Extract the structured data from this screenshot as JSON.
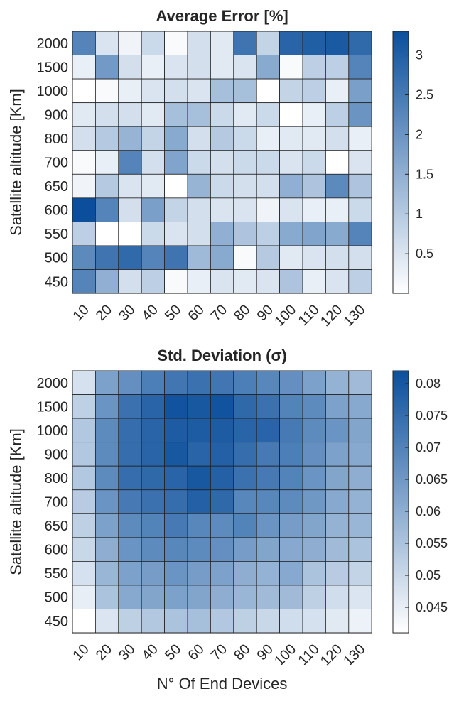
{
  "figure": {
    "xlabel": "N° Of End Devices"
  },
  "chart_data": [
    {
      "type": "heatmap",
      "title": "Average Error [%]",
      "ylabel": "Satellite altitude [Km]",
      "xlabel": "",
      "x_categories": [
        "10",
        "20",
        "30",
        "40",
        "50",
        "60",
        "70",
        "80",
        "90",
        "100",
        "110",
        "120",
        "130"
      ],
      "y_categories": [
        "2000",
        "1500",
        "1000",
        "900",
        "800",
        "700",
        "650",
        "600",
        "550",
        "500",
        "450"
      ],
      "colormap": [
        "#ffffff",
        "#0b4f9c"
      ],
      "zlim": [
        0.0,
        3.3
      ],
      "colorbar_ticks": [
        "0.5",
        "1",
        "1.5",
        "2",
        "2.5",
        "3"
      ],
      "colorbar_tick_values": [
        0.5,
        1,
        1.5,
        2,
        2.5,
        3
      ],
      "values": [
        [
          2.3,
          0.5,
          0.2,
          0.7,
          0.1,
          0.6,
          0.4,
          2.6,
          0.8,
          2.9,
          3.0,
          3.1,
          2.8
        ],
        [
          0.3,
          1.9,
          0.6,
          0.3,
          0.5,
          0.6,
          0.4,
          0.5,
          1.6,
          0.1,
          0.9,
          0.9,
          2.3
        ],
        [
          0.0,
          0.1,
          0.3,
          0.5,
          0.6,
          0.5,
          1.2,
          1.2,
          0.0,
          0.8,
          0.9,
          0.3,
          1.8
        ],
        [
          0.4,
          0.6,
          0.6,
          0.4,
          1.2,
          1.2,
          0.7,
          0.4,
          0.7,
          0.0,
          0.3,
          0.9,
          2.0
        ],
        [
          0.6,
          1.0,
          1.4,
          0.8,
          1.6,
          0.6,
          1.0,
          0.7,
          0.3,
          0.4,
          0.4,
          0.6,
          0.3
        ],
        [
          0.1,
          0.3,
          2.3,
          0.6,
          1.7,
          0.7,
          0.6,
          0.7,
          0.7,
          0.5,
          0.7,
          0.0,
          0.5
        ],
        [
          0.2,
          1.0,
          0.5,
          0.4,
          0.0,
          1.4,
          0.7,
          0.6,
          0.6,
          1.5,
          1.1,
          2.2,
          1.1
        ],
        [
          3.3,
          2.3,
          0.6,
          1.8,
          0.8,
          0.6,
          0.5,
          0.5,
          0.2,
          0.5,
          0.3,
          0.3,
          0.7
        ],
        [
          0.9,
          0.0,
          0.0,
          0.7,
          0.5,
          0.6,
          1.5,
          1.1,
          0.9,
          1.6,
          1.7,
          1.6,
          2.3
        ],
        [
          2.2,
          2.6,
          2.8,
          2.3,
          2.6,
          1.3,
          1.6,
          0.1,
          1.0,
          0.4,
          0.5,
          0.6,
          0.6
        ],
        [
          2.3,
          1.5,
          0.6,
          0.9,
          0.1,
          0.3,
          0.5,
          0.4,
          0.5,
          1.1,
          0.3,
          0.5,
          0.9
        ]
      ]
    },
    {
      "type": "heatmap",
      "title": "Std. Deviation (σ)",
      "ylabel": "Satellite altitude [Km]",
      "xlabel": "N° Of End Devices",
      "x_categories": [
        "10",
        "20",
        "30",
        "40",
        "50",
        "60",
        "70",
        "80",
        "90",
        "100",
        "110",
        "120",
        "130"
      ],
      "y_categories": [
        "2000",
        "1500",
        "1000",
        "900",
        "800",
        "700",
        "650",
        "600",
        "550",
        "500",
        "450"
      ],
      "colormap": [
        "#ffffff",
        "#0b4f9c"
      ],
      "zlim": [
        0.041,
        0.082
      ],
      "colorbar_ticks": [
        "0.045",
        "0.05",
        "0.055",
        "0.06",
        "0.065",
        "0.07",
        "0.075",
        "0.08"
      ],
      "colorbar_tick_values": [
        0.045,
        0.05,
        0.055,
        0.06,
        0.065,
        0.07,
        0.075,
        0.08
      ],
      "values": [
        [
          0.048,
          0.063,
          0.067,
          0.071,
          0.073,
          0.074,
          0.073,
          0.071,
          0.069,
          0.067,
          0.063,
          0.059,
          0.057
        ],
        [
          0.052,
          0.066,
          0.074,
          0.077,
          0.081,
          0.08,
          0.081,
          0.076,
          0.074,
          0.07,
          0.068,
          0.063,
          0.061
        ],
        [
          0.054,
          0.068,
          0.075,
          0.077,
          0.079,
          0.079,
          0.079,
          0.077,
          0.077,
          0.072,
          0.068,
          0.066,
          0.062
        ],
        [
          0.054,
          0.068,
          0.075,
          0.077,
          0.08,
          0.077,
          0.078,
          0.075,
          0.072,
          0.071,
          0.067,
          0.063,
          0.061
        ],
        [
          0.054,
          0.068,
          0.075,
          0.076,
          0.077,
          0.08,
          0.078,
          0.074,
          0.072,
          0.07,
          0.066,
          0.062,
          0.06
        ],
        [
          0.053,
          0.066,
          0.072,
          0.074,
          0.075,
          0.078,
          0.076,
          0.069,
          0.069,
          0.068,
          0.065,
          0.061,
          0.059
        ],
        [
          0.052,
          0.063,
          0.068,
          0.07,
          0.072,
          0.069,
          0.068,
          0.07,
          0.066,
          0.064,
          0.062,
          0.059,
          0.058
        ],
        [
          0.05,
          0.06,
          0.066,
          0.068,
          0.069,
          0.068,
          0.067,
          0.064,
          0.062,
          0.061,
          0.06,
          0.057,
          0.055
        ],
        [
          0.048,
          0.058,
          0.063,
          0.064,
          0.066,
          0.064,
          0.063,
          0.06,
          0.059,
          0.061,
          0.055,
          0.053,
          0.051
        ],
        [
          0.045,
          0.055,
          0.061,
          0.062,
          0.063,
          0.062,
          0.06,
          0.058,
          0.057,
          0.057,
          0.052,
          0.049,
          0.047
        ],
        [
          0.041,
          0.047,
          0.052,
          0.054,
          0.055,
          0.056,
          0.054,
          0.052,
          0.05,
          0.049,
          0.048,
          0.046,
          0.044
        ]
      ]
    }
  ]
}
